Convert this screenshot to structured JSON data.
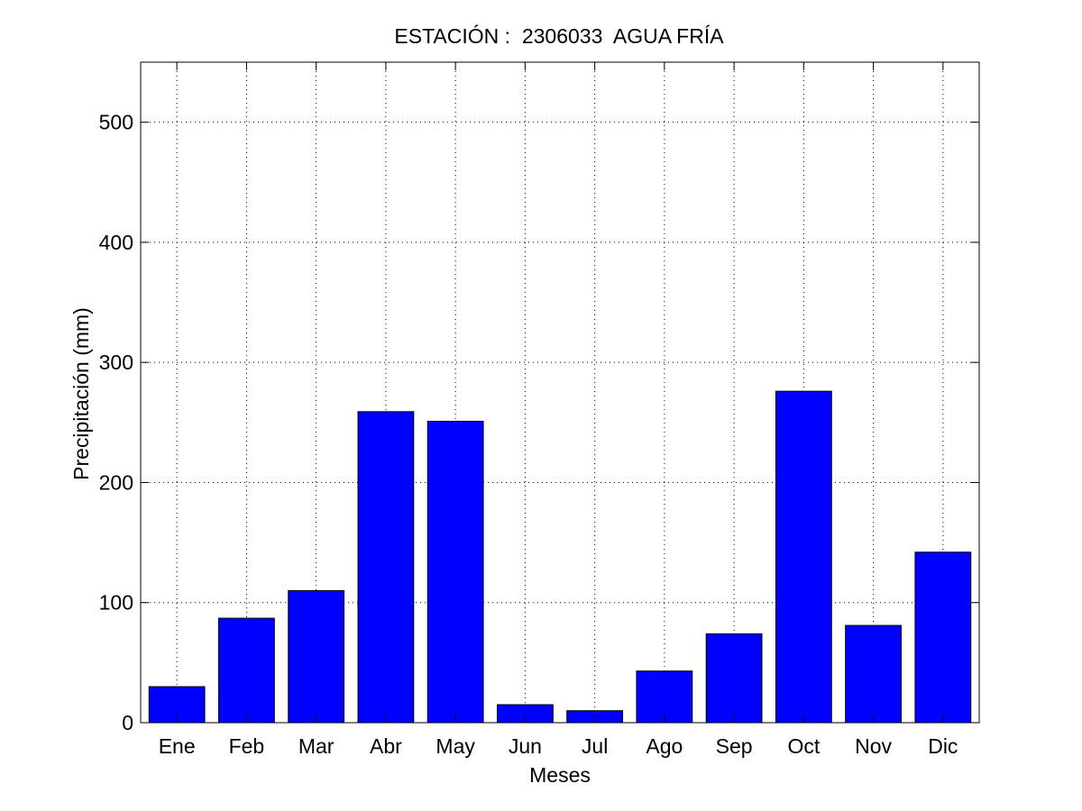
{
  "chart_data": {
    "type": "bar",
    "title": "ESTACIÓN :  2306033  AGUA FRÍA",
    "xlabel": "Meses",
    "ylabel": "Precipitación (mm)",
    "categories": [
      "Ene",
      "Feb",
      "Mar",
      "Abr",
      "May",
      "Jun",
      "Jul",
      "Ago",
      "Sep",
      "Oct",
      "Nov",
      "Dic"
    ],
    "values": [
      30,
      87,
      110,
      259,
      251,
      15,
      10,
      43,
      74,
      276,
      81,
      142
    ],
    "ylim": [
      0,
      550
    ],
    "yticks": [
      0,
      100,
      200,
      300,
      400,
      500
    ],
    "grid": true,
    "bar_color": "#0000ff",
    "edge_color": "#000000"
  }
}
